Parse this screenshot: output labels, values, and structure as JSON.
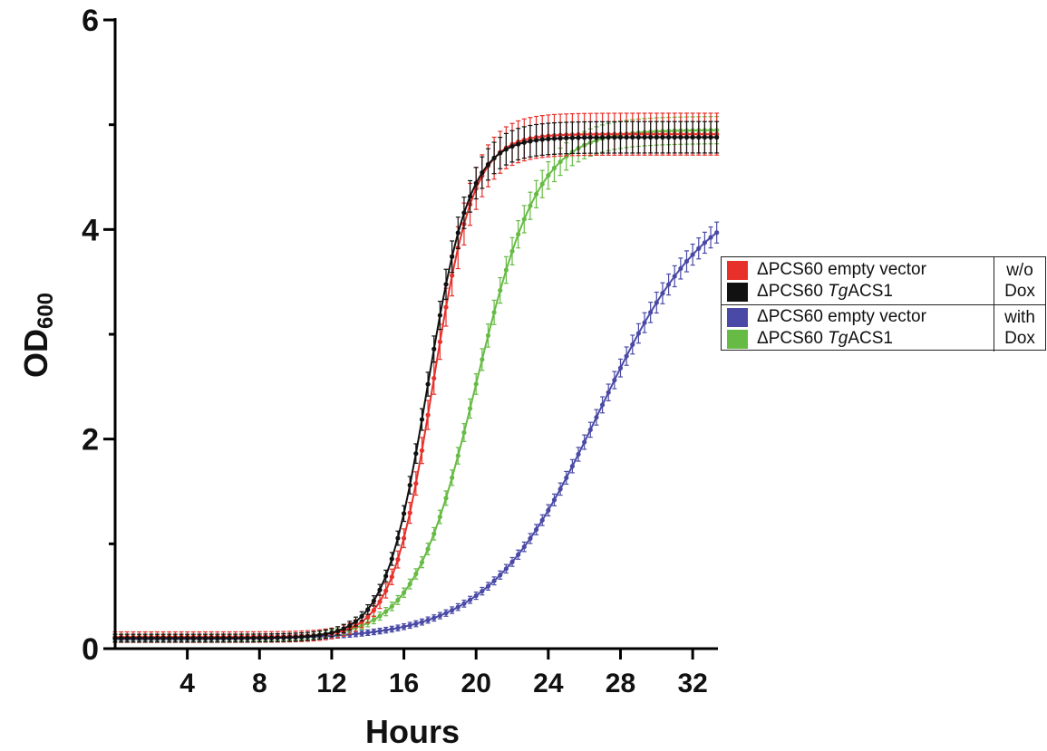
{
  "chart_data": {
    "type": "line",
    "xlabel": "Hours",
    "ylabel_main": "OD",
    "ylabel_sub": "600",
    "xlim": [
      0,
      33.4
    ],
    "ylim": [
      0,
      6
    ],
    "xticks": [
      4,
      8,
      12,
      16,
      20,
      24,
      28,
      32
    ],
    "yticks": [
      0,
      2,
      4,
      6
    ],
    "ytick_labels": [
      "0",
      "2",
      "4",
      "6"
    ],
    "grid": false,
    "error_bars": true,
    "legend_position": "right",
    "series": [
      {
        "name_prefix": "ΔPCS60 ",
        "name_italic": "",
        "name_suffix": "empty vector",
        "group": "w/o Dox",
        "color": "#e8302a",
        "baseline": 0.11,
        "plateau": 4.91,
        "midpoint": 17.6,
        "rate": 0.88,
        "error": 0.2
      },
      {
        "name_prefix": "ΔPCS60 ",
        "name_italic": "Tg",
        "name_suffix": "ACS1",
        "group": "w/o Dox",
        "color": "#111111",
        "baseline": 0.1,
        "plateau": 4.88,
        "midpoint": 17.3,
        "rate": 0.85,
        "error": 0.15
      },
      {
        "name_prefix": "ΔPCS60 ",
        "name_italic": "",
        "name_suffix": "empty vector",
        "group": "with Dox",
        "color": "#4a4aa6",
        "baseline": 0.09,
        "plateau": 4.42,
        "midpoint": 26.8,
        "rate": 0.33,
        "error": 0.1
      },
      {
        "name_prefix": "ΔPCS60 ",
        "name_italic": "Tg",
        "name_suffix": "ACS1",
        "group": "with Dox",
        "color": "#66bb44",
        "baseline": 0.1,
        "plateau": 4.95,
        "midpoint": 20.0,
        "rate": 0.58,
        "error": 0.13
      }
    ]
  },
  "legend": {
    "group1_line1": "w/o",
    "group1_line2": "Dox",
    "group2_line1": "with",
    "group2_line2": "Dox"
  }
}
